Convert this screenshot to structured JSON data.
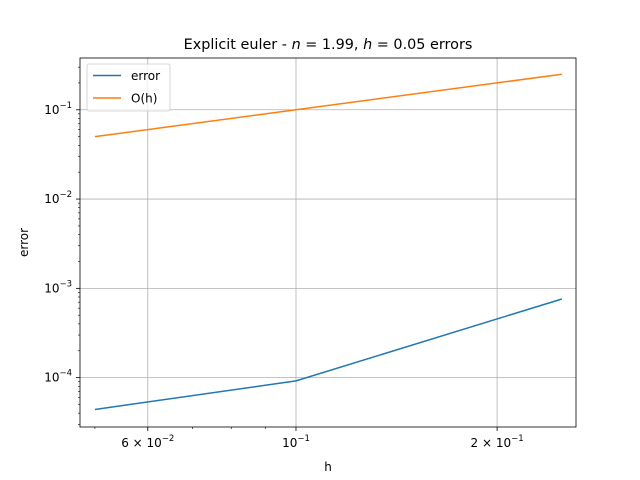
{
  "chart_data": {
    "type": "line",
    "title": "Explicit euler - n = 1.99, h = 0.05 errors",
    "title_parts": {
      "prefix": "Explicit euler - ",
      "n_var": "n",
      "n_eq": " = 1.99, ",
      "h_var": "h",
      "h_eq": " = 0.05 errors"
    },
    "xlabel": "h",
    "ylabel": "error",
    "xscale": "log",
    "yscale": "log",
    "xlim": [
      0.0475,
      0.2625
    ],
    "ylim": [
      2.8e-05,
      0.38
    ],
    "grid": "major",
    "legend_position": "top-left",
    "x_ticks": [
      {
        "value": 0.06,
        "mantissa": "6",
        "exp": "−2"
      },
      {
        "value": 0.1,
        "mantissa": "",
        "exp": "−1"
      },
      {
        "value": 0.2,
        "mantissa": "2",
        "exp": "−1"
      }
    ],
    "y_ticks": [
      {
        "value": 0.0001,
        "exp": "−4"
      },
      {
        "value": 0.001,
        "exp": "−3"
      },
      {
        "value": 0.01,
        "exp": "−2"
      },
      {
        "value": 0.1,
        "exp": "−1"
      }
    ],
    "tick_base": "10",
    "series": [
      {
        "name": "error",
        "color": "#1f77b4",
        "x": [
          0.05,
          0.1,
          0.25
        ],
        "y": [
          4.4e-05,
          9.2e-05,
          0.00076
        ]
      },
      {
        "name": "O(h)",
        "color": "#ff7f0e",
        "x": [
          0.05,
          0.1,
          0.25
        ],
        "y": [
          0.05,
          0.1,
          0.25
        ]
      }
    ]
  }
}
